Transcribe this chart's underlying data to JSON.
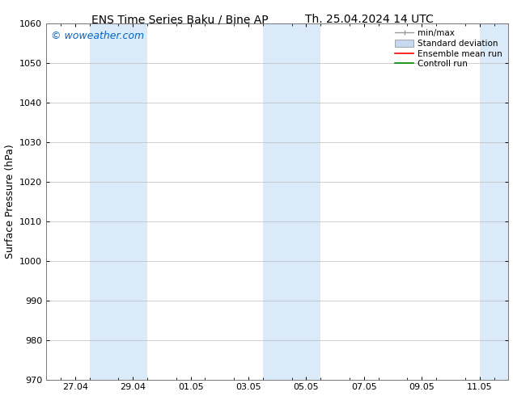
{
  "title_left": "ENS Time Series Baku / Bine AP",
  "title_right": "Th. 25.04.2024 14 UTC",
  "ylabel": "Surface Pressure (hPa)",
  "ylim": [
    970,
    1060
  ],
  "yticks": [
    970,
    980,
    990,
    1000,
    1010,
    1020,
    1030,
    1040,
    1050,
    1060
  ],
  "xtick_labels": [
    "27.04",
    "29.04",
    "01.05",
    "03.05",
    "05.05",
    "07.05",
    "09.05",
    "11.05"
  ],
  "xtick_positions": [
    2,
    4,
    6,
    8,
    10,
    12,
    14,
    16
  ],
  "xlim": [
    1,
    17
  ],
  "watermark": "© woweather.com",
  "watermark_color": "#0066cc",
  "bg_color": "#ffffff",
  "plot_bg_color": "#ffffff",
  "shaded_bands": [
    {
      "x_start": 2.5,
      "x_end": 4.5
    },
    {
      "x_start": 8.5,
      "x_end": 10.5
    },
    {
      "x_start": 16.0,
      "x_end": 17.0
    }
  ],
  "shade_color": "#daeaf8",
  "grid_color": "#bbbbbb",
  "legend_entries": [
    {
      "label": "min/max",
      "color": "#999999",
      "style": "errorbar"
    },
    {
      "label": "Standard deviation",
      "color": "#c8d8ee",
      "style": "band"
    },
    {
      "label": "Ensemble mean run",
      "color": "#ff0000",
      "style": "line"
    },
    {
      "label": "Controll run",
      "color": "#008800",
      "style": "line"
    }
  ],
  "font_family": "DejaVu Sans",
  "title_fontsize": 10,
  "tick_fontsize": 8,
  "ylabel_fontsize": 9,
  "watermark_fontsize": 9,
  "legend_fontsize": 7.5
}
